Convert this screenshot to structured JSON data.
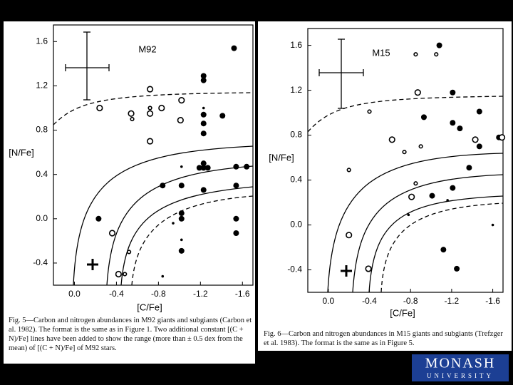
{
  "chart_data": [
    {
      "type": "scatter",
      "annotation": "M92",
      "xlabel": "[C/Fe]",
      "ylabel": "[N/Fe]",
      "caption": "Fig. 5—Carbon and nitrogen abundances in M92 giants and subgiants (Carbon et al. 1982). The format is the same as in Figure 1. Two additional constant [(C + N)/Fe] lines have been added to show the range (more than ± 0.5 dex from the mean) of [(C + N)/Fe] of M92 stars.",
      "xlim": [
        0.2,
        -1.7
      ],
      "ylim": [
        -0.6,
        1.75
      ],
      "xticks": [
        {
          "value": 0,
          "label": "0.0"
        },
        -0.4,
        -0.8,
        -1.2,
        -1.6
      ],
      "yticks": [
        1.6,
        1.2,
        0.8,
        0.4,
        {
          "value": 0,
          "label": "0.0"
        },
        -0.4
      ],
      "series": [
        {
          "marker": "filled",
          "size": "large",
          "color": "#000000",
          "x": [
            -1.52,
            -1.23,
            -1.23,
            -1.23,
            -1.23,
            -1.23,
            -1.41,
            -1.23,
            -1.19,
            -1.23,
            -1.27,
            -1.64,
            -1.54,
            -0.84,
            -1.02,
            -1.23,
            -1.54,
            -0.23,
            -1.02,
            -1.02,
            -1.54,
            -1.54,
            -1.02
          ],
          "values": [
            1.54,
            1.29,
            1.25,
            0.94,
            0.86,
            0.77,
            0.93,
            0.5,
            0.46,
            0.46,
            0.46,
            0.47,
            0.47,
            0.3,
            0.3,
            0.26,
            0.3,
            0.0,
            0.05,
            0.0,
            0.0,
            -0.13,
            -0.29
          ]
        },
        {
          "marker": "filled",
          "size": "small",
          "color": "#000000",
          "x": [
            -1.23,
            -1.02,
            -0.94,
            -1.02,
            -0.84
          ],
          "values": [
            1.0,
            0.47,
            -0.04,
            -0.19,
            -0.52
          ]
        },
        {
          "marker": "open",
          "size": "large",
          "color": "#000000",
          "x": [
            -0.72,
            -0.24,
            -0.54,
            -0.72,
            -0.83,
            -1.02,
            -1.01,
            -0.72,
            -0.36,
            -0.42
          ],
          "values": [
            1.17,
            1.0,
            0.95,
            0.95,
            1.0,
            1.07,
            0.89,
            0.7,
            -0.13,
            -0.5
          ]
        },
        {
          "marker": "open",
          "size": "small",
          "color": "#000000",
          "x": [
            -0.55,
            -0.72,
            -0.52,
            -0.48
          ],
          "values": [
            0.9,
            1.0,
            -0.3,
            -0.5
          ]
        }
      ]
    },
    {
      "type": "scatter",
      "annotation": "M15",
      "xlabel": "[C/Fe]",
      "ylabel": "[N/Fe]",
      "caption": "Fig. 6—Carbon and nitrogen abundances in M15 giants and subgiants (Trefzger et al. 1983). The format is the same as in Figure 5.",
      "xlim": [
        0.2,
        -1.7
      ],
      "ylim": [
        -0.6,
        1.75
      ],
      "xticks": [
        {
          "value": 0,
          "label": "0.0"
        },
        -0.4,
        -0.8,
        -1.2,
        -1.6
      ],
      "yticks": [
        1.6,
        1.2,
        0.8,
        0.4,
        {
          "value": 0,
          "label": "0.0"
        },
        -0.4
      ],
      "series": [
        {
          "marker": "filled",
          "size": "large",
          "color": "#000000",
          "x": [
            -1.08,
            -1.21,
            -1.47,
            -0.93,
            -1.21,
            -1.28,
            -1.47,
            -1.66,
            -1.37,
            -1.01,
            -1.21,
            -1.12,
            -1.25
          ],
          "values": [
            1.6,
            1.18,
            1.01,
            0.96,
            0.91,
            0.86,
            0.7,
            0.78,
            0.51,
            0.26,
            0.33,
            -0.22,
            -0.39
          ]
        },
        {
          "marker": "filled",
          "size": "small",
          "color": "#000000",
          "x": [
            -1.16,
            -0.78,
            -1.6
          ],
          "values": [
            0.22,
            0.09,
            0.0
          ]
        },
        {
          "marker": "open",
          "size": "large",
          "color": "#000000",
          "x": [
            -0.87,
            -0.62,
            -1.43,
            -1.69,
            -0.81,
            -0.2,
            -0.39
          ],
          "values": [
            1.18,
            0.76,
            0.76,
            0.78,
            0.25,
            -0.09,
            -0.39
          ]
        },
        {
          "marker": "open",
          "size": "small",
          "color": "#000000",
          "x": [
            -0.85,
            -1.05,
            -0.4,
            -0.9,
            -0.74,
            -0.2,
            -0.85
          ],
          "values": [
            1.52,
            1.52,
            1.01,
            0.7,
            0.65,
            0.49,
            0.37
          ]
        }
      ]
    }
  ],
  "logo": {
    "name": "MONASH",
    "subtitle": "UNIVERSITY"
  }
}
